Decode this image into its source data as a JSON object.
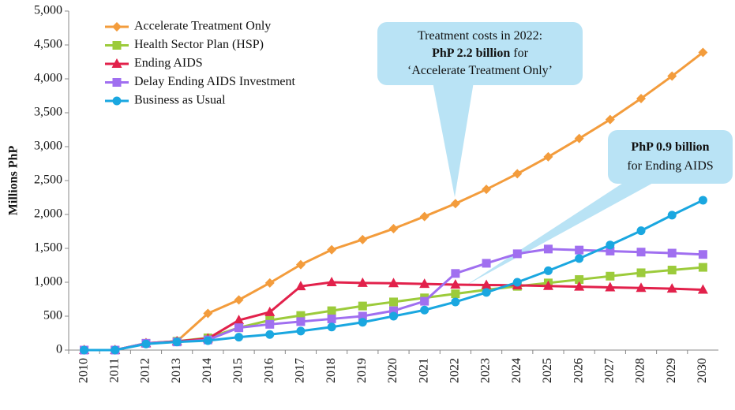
{
  "chart_data": {
    "type": "line",
    "ylabel": "Millions  PhP",
    "categories": [
      "2010",
      "2011",
      "2012",
      "2013",
      "2014",
      "2015",
      "2016",
      "2017",
      "2018",
      "2019",
      "2020",
      "2021",
      "2022",
      "2023",
      "2024",
      "2025",
      "2026",
      "2027",
      "2028",
      "2029",
      "2030"
    ],
    "series": [
      {
        "name": "Accelerate Treatment Only",
        "color": "#f39c3c",
        "marker": "diamond",
        "values": [
          0,
          0,
          100,
          130,
          540,
          740,
          990,
          1260,
          1480,
          1630,
          1790,
          1970,
          2160,
          2370,
          2600,
          2850,
          3120,
          3400,
          3710,
          4040,
          4390
        ]
      },
      {
        "name": "Health Sector Plan (HSP)",
        "color": "#9ccb3b",
        "marker": "square",
        "values": [
          0,
          0,
          100,
          130,
          180,
          330,
          440,
          510,
          580,
          650,
          710,
          770,
          830,
          890,
          940,
          990,
          1040,
          1090,
          1140,
          1180,
          1220
        ]
      },
      {
        "name": "Ending AIDS",
        "color": "#e2214b",
        "marker": "triangle",
        "values": [
          0,
          0,
          100,
          130,
          170,
          440,
          560,
          940,
          1000,
          990,
          985,
          975,
          965,
          960,
          955,
          945,
          935,
          925,
          915,
          905,
          890
        ]
      },
      {
        "name": "Delay Ending AIDS Investment",
        "color": "#a06ff0",
        "marker": "square",
        "values": [
          0,
          0,
          100,
          120,
          150,
          330,
          380,
          420,
          460,
          500,
          580,
          720,
          1130,
          1280,
          1420,
          1490,
          1475,
          1460,
          1445,
          1430,
          1410
        ]
      },
      {
        "name": "Business as Usual",
        "color": "#1aa7e0",
        "marker": "circle",
        "values": [
          0,
          0,
          90,
          120,
          140,
          190,
          230,
          280,
          340,
          410,
          500,
          590,
          710,
          850,
          1000,
          1170,
          1350,
          1550,
          1760,
          1990,
          2210
        ]
      }
    ],
    "ylim": [
      0,
      5000
    ],
    "yticks": [
      0,
      500,
      {
        "value": 1000,
        "label": "1,000"
      },
      {
        "value": 1500,
        "label": "1,500"
      },
      {
        "value": 2000,
        "label": "2,000"
      },
      {
        "value": 2500,
        "label": "2,500"
      },
      {
        "value": 3000,
        "label": "3,000"
      },
      {
        "value": 3500,
        "label": "3,500"
      },
      {
        "value": 4000,
        "label": "4,000"
      },
      {
        "value": 4500,
        "label": "4,500"
      },
      {
        "value": 5000,
        "label": "5,000"
      }
    ],
    "grid": false,
    "legend": "upper left",
    "annotations": [
      {
        "lines": [
          [
            {
              "text": "Treatment costs in 2022:"
            }
          ],
          [
            {
              "text": "PhP 2.2 billion",
              "bold": true
            },
            {
              "text": " for"
            }
          ],
          [
            {
              "text": "‘Accelerate Treatment Only’"
            }
          ]
        ]
      },
      {
        "lines": [
          [
            {
              "text": "PhP 0.9 billion",
              "bold": true
            }
          ],
          [
            {
              "text": "for Ending AIDS"
            }
          ]
        ]
      }
    ]
  }
}
